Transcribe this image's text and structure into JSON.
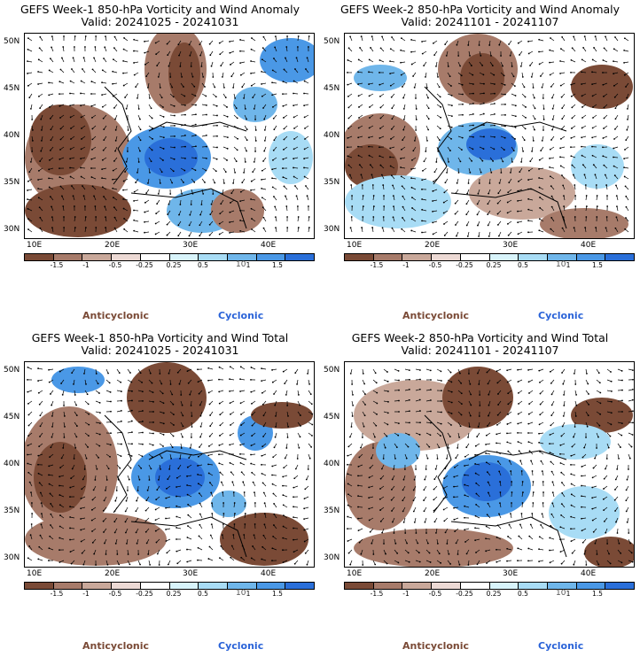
{
  "colors": {
    "brown_dark": "#7a4a36",
    "brown_mid": "#a77b6a",
    "brown_light": "#c9a89a",
    "pink": "#ecd9d4",
    "white": "#ffffff",
    "cyan_light": "#d8f4fb",
    "blue_light": "#a8dcf5",
    "blue_mid": "#6fb6ea",
    "blue": "#4a98e6",
    "blue_dark": "#2a6fd9"
  },
  "common": {
    "lat_labels": [
      "50N",
      "45N",
      "40N",
      "35N",
      "30N"
    ],
    "lon_labels": [
      "10E",
      "20E",
      "30E",
      "40E"
    ],
    "colorbar_ticks": [
      "-1.5",
      "-1",
      "-0.5",
      "-0.25",
      "0.25",
      "0.5",
      "1",
      "1.5"
    ],
    "colorbar_unit": "10",
    "anticyclonic_label": "Anticyclonic",
    "cyclonic_label": "Cyclonic"
  },
  "panels": [
    {
      "title": "GEFS Week-1 850-hPa Vorticity and Wind Anomaly",
      "valid": "Valid: 20241025 - 20241031"
    },
    {
      "title": "GEFS Week-2 850-hPa Vorticity and Wind Anomaly",
      "valid": "Valid: 20241101 - 20241107"
    },
    {
      "title": "GEFS Week-1 850-hPa Vorticity and Wind Total",
      "valid": "Valid: 20241025 - 20241031"
    },
    {
      "title": "GEFS Week-2 850-hPa Vorticity and Wind Total",
      "valid": "Valid: 20241101 - 20241107"
    }
  ]
}
